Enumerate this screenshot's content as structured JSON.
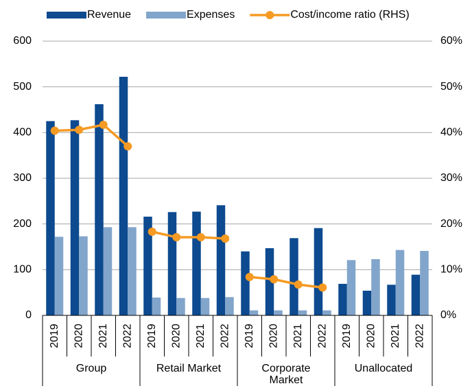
{
  "chart_data": {
    "type": "bar",
    "groups": [
      "Group",
      "Retail Market",
      "Corporate Market",
      "Unallocated"
    ],
    "categories": [
      [
        "2019",
        "2020",
        "2021",
        "2022"
      ],
      [
        "2019",
        "2020",
        "2021",
        "2022"
      ],
      [
        "2019",
        "2020",
        "2021",
        "2022"
      ],
      [
        "2019",
        "2020",
        "2021",
        "2022"
      ]
    ],
    "series": [
      {
        "name": "Revenue",
        "type": "bar",
        "color": "#0d4a8f",
        "values": [
          [
            425,
            427,
            462,
            522
          ],
          [
            216,
            226,
            227,
            241
          ],
          [
            140,
            147,
            169,
            191
          ],
          [
            69,
            54,
            67,
            89
          ]
        ]
      },
      {
        "name": "Expenses",
        "type": "bar",
        "color": "#82a5cb",
        "values": [
          [
            172,
            173,
            193,
            193
          ],
          [
            39,
            38,
            38,
            40
          ],
          [
            11,
            11,
            11,
            11
          ],
          [
            121,
            123,
            143,
            141
          ]
        ]
      },
      {
        "name": "Cost/income ratio (RHS)",
        "type": "line",
        "axis": "y2",
        "color": "#f59a23",
        "values": [
          [
            40.4,
            40.6,
            41.7,
            37.0
          ],
          [
            18.3,
            17.1,
            17.1,
            16.8
          ],
          [
            8.4,
            7.9,
            6.75,
            6.1
          ],
          [
            null,
            null,
            null,
            null
          ]
        ]
      }
    ],
    "ylim": [
      0,
      600
    ],
    "yticks": [
      0,
      100,
      200,
      300,
      400,
      500,
      600
    ],
    "y2lim": [
      0,
      60
    ],
    "y2ticks": [
      {
        "value": 0,
        "label": "0%"
      },
      {
        "value": 10,
        "label": "10%"
      },
      {
        "value": 20,
        "label": "20%"
      },
      {
        "value": 30,
        "label": "30%"
      },
      {
        "value": 40,
        "label": "40%"
      },
      {
        "value": 50,
        "label": "50%"
      },
      {
        "value": 60,
        "label": "60%"
      }
    ],
    "grid": true,
    "legend": "top"
  }
}
